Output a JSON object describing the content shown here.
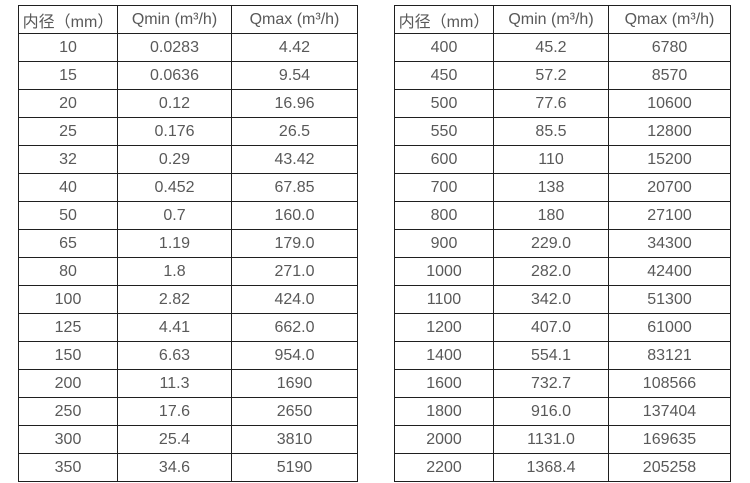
{
  "page": {
    "background_color": "#ffffff",
    "text_color": "#595959",
    "border_color": "#1f1f1f"
  },
  "tables": [
    {
      "name": "small-diameter-flow-table",
      "headers": [
        "内径（mm）",
        "Qmin (m³/h)",
        "Qmax (m³/h)"
      ],
      "rows": [
        [
          "10",
          "0.0283",
          "4.42"
        ],
        [
          "15",
          "0.0636",
          "9.54"
        ],
        [
          "20",
          "0.12",
          "16.96"
        ],
        [
          "25",
          "0.176",
          "26.5"
        ],
        [
          "32",
          "0.29",
          "43.42"
        ],
        [
          "40",
          "0.452",
          "67.85"
        ],
        [
          "50",
          "0.7",
          "160.0"
        ],
        [
          "65",
          "1.19",
          "179.0"
        ],
        [
          "80",
          "1.8",
          "271.0"
        ],
        [
          "100",
          "2.82",
          "424.0"
        ],
        [
          "125",
          "4.41",
          "662.0"
        ],
        [
          "150",
          "6.63",
          "954.0"
        ],
        [
          "200",
          "11.3",
          "1690"
        ],
        [
          "250",
          "17.6",
          "2650"
        ],
        [
          "300",
          "25.4",
          "3810"
        ],
        [
          "350",
          "34.6",
          "5190"
        ]
      ]
    },
    {
      "name": "large-diameter-flow-table",
      "headers": [
        "内径（mm）",
        "Qmin (m³/h)",
        "Qmax (m³/h)"
      ],
      "rows": [
        [
          "400",
          "45.2",
          "6780"
        ],
        [
          "450",
          "57.2",
          "8570"
        ],
        [
          "500",
          "77.6",
          "10600"
        ],
        [
          "550",
          "85.5",
          "12800"
        ],
        [
          "600",
          "110",
          "15200"
        ],
        [
          "700",
          "138",
          "20700"
        ],
        [
          "800",
          "180",
          "27100"
        ],
        [
          "900",
          "229.0",
          "34300"
        ],
        [
          "1000",
          "282.0",
          "42400"
        ],
        [
          "1100",
          "342.0",
          "51300"
        ],
        [
          "1200",
          "407.0",
          "61000"
        ],
        [
          "1400",
          "554.1",
          "83121"
        ],
        [
          "1600",
          "732.7",
          "108566"
        ],
        [
          "1800",
          "916.0",
          "137404"
        ],
        [
          "2000",
          "1131.0",
          "169635"
        ],
        [
          "2200",
          "1368.4",
          "205258"
        ]
      ]
    }
  ]
}
